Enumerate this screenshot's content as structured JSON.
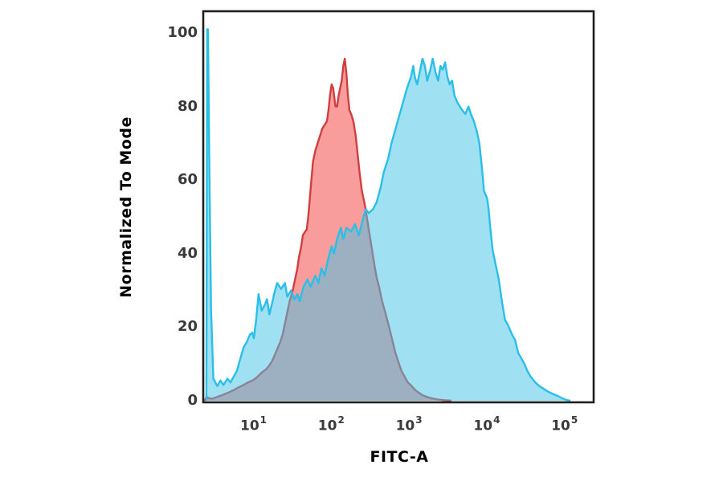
{
  "figure": {
    "background_color": "#ffffff",
    "frame_color": "#1f1f1f",
    "overlap_visual_color": "#95a9bc"
  },
  "axes": {
    "y": {
      "title": "Normalized To Mode",
      "tick_values": [
        0,
        20,
        40,
        60,
        80,
        100
      ],
      "range": [
        0,
        105.5
      ],
      "grid": false
    },
    "x": {
      "title": "FITC-A",
      "scale": "log10",
      "tick_base": "10",
      "tick_exponents": [
        "1",
        "2",
        "3",
        "4",
        "5"
      ],
      "range_log10": [
        0.38,
        5.38
      ],
      "grid": false
    }
  },
  "chart_data": {
    "type": "area",
    "subtype": "flow-cytometry-overlay-histogram",
    "title": "",
    "xlabel": "FITC-A",
    "ylabel": "Normalized To Mode",
    "x_scale": "log10",
    "x_range_log10": [
      0.38,
      5.38
    ],
    "ylim": [
      0,
      105.5
    ],
    "grid": false,
    "legend_position": "none",
    "series": [
      {
        "name": "red-histogram",
        "stroke": "#cf3f3f",
        "fill": "#f89c9c",
        "fill_opacity": 1,
        "stroke_width": 2.4,
        "points_log10x_y": [
          [
            0.38,
            0
          ],
          [
            0.4,
            1
          ],
          [
            0.43,
            0.7
          ],
          [
            0.47,
            0.5
          ],
          [
            0.51,
            0.8
          ],
          [
            0.56,
            1.2
          ],
          [
            0.61,
            1.6
          ],
          [
            0.66,
            2
          ],
          [
            0.71,
            2.5
          ],
          [
            0.76,
            3
          ],
          [
            0.81,
            3.6
          ],
          [
            0.87,
            4.2
          ],
          [
            0.92,
            4.8
          ],
          [
            0.96,
            5.2
          ],
          [
            1.0,
            5.6
          ],
          [
            1.04,
            6.2
          ],
          [
            1.08,
            7
          ],
          [
            1.12,
            7.8
          ],
          [
            1.17,
            8.6
          ],
          [
            1.21,
            9.6
          ],
          [
            1.25,
            11
          ],
          [
            1.29,
            13
          ],
          [
            1.32,
            14.5
          ],
          [
            1.35,
            16
          ],
          [
            1.38,
            18
          ],
          [
            1.41,
            21
          ],
          [
            1.44,
            24
          ],
          [
            1.47,
            27
          ],
          [
            1.51,
            30
          ],
          [
            1.54,
            33
          ],
          [
            1.57,
            36
          ],
          [
            1.59,
            39
          ],
          [
            1.62,
            42
          ],
          [
            1.64,
            45
          ],
          [
            1.67,
            46
          ],
          [
            1.69,
            46.5
          ],
          [
            1.71,
            50
          ],
          [
            1.73,
            55
          ],
          [
            1.75,
            60
          ],
          [
            1.77,
            65
          ],
          [
            1.8,
            68
          ],
          [
            1.83,
            70
          ],
          [
            1.86,
            72
          ],
          [
            1.89,
            74
          ],
          [
            1.92,
            75
          ],
          [
            1.95,
            76
          ],
          [
            1.97,
            79
          ],
          [
            1.99,
            83
          ],
          [
            2.01,
            86
          ],
          [
            2.03,
            85
          ],
          [
            2.06,
            80
          ],
          [
            2.08,
            80
          ],
          [
            2.1,
            83
          ],
          [
            2.14,
            87
          ],
          [
            2.16,
            91
          ],
          [
            2.18,
            93
          ],
          [
            2.2,
            89
          ],
          [
            2.22,
            83
          ],
          [
            2.24,
            79
          ],
          [
            2.26,
            78
          ],
          [
            2.29,
            76
          ],
          [
            2.32,
            72
          ],
          [
            2.35,
            66
          ],
          [
            2.37,
            62
          ],
          [
            2.4,
            57
          ],
          [
            2.44,
            53
          ],
          [
            2.47,
            49
          ],
          [
            2.5,
            45
          ],
          [
            2.53,
            41
          ],
          [
            2.56,
            37
          ],
          [
            2.59,
            33.5
          ],
          [
            2.62,
            31
          ],
          [
            2.66,
            27
          ],
          [
            2.7,
            24
          ],
          [
            2.75,
            20
          ],
          [
            2.79,
            16.5
          ],
          [
            2.83,
            13
          ],
          [
            2.87,
            10.5
          ],
          [
            2.91,
            8
          ],
          [
            2.95,
            6.5
          ],
          [
            2.99,
            5
          ],
          [
            3.04,
            4
          ],
          [
            3.08,
            3
          ],
          [
            3.13,
            2.2
          ],
          [
            3.18,
            1.5
          ],
          [
            3.24,
            1
          ],
          [
            3.31,
            0.6
          ],
          [
            3.38,
            0.3
          ],
          [
            3.47,
            0.1
          ],
          [
            3.55,
            0
          ]
        ]
      },
      {
        "name": "cyan-histogram",
        "stroke": "#29bfe6",
        "fill": "#46c3e6",
        "fill_opacity": 0.52,
        "stroke_width": 2.4,
        "points_log10x_y": [
          [
            0.4,
            0
          ],
          [
            0.41,
            101
          ],
          [
            0.42,
            101
          ],
          [
            0.44,
            60
          ],
          [
            0.46,
            25
          ],
          [
            0.49,
            6
          ],
          [
            0.54,
            4
          ],
          [
            0.58,
            5.5
          ],
          [
            0.62,
            4.3
          ],
          [
            0.67,
            6
          ],
          [
            0.71,
            5
          ],
          [
            0.75,
            6.5
          ],
          [
            0.79,
            8
          ],
          [
            0.83,
            11
          ],
          [
            0.88,
            14.6
          ],
          [
            0.92,
            16
          ],
          [
            0.96,
            18
          ],
          [
            0.99,
            18.5
          ],
          [
            1.01,
            17
          ],
          [
            1.04,
            22
          ],
          [
            1.07,
            29
          ],
          [
            1.11,
            24.5
          ],
          [
            1.15,
            26
          ],
          [
            1.18,
            27.6
          ],
          [
            1.21,
            23.5
          ],
          [
            1.24,
            26
          ],
          [
            1.27,
            29
          ],
          [
            1.31,
            32
          ],
          [
            1.36,
            30.4
          ],
          [
            1.41,
            32
          ],
          [
            1.44,
            28.3
          ],
          [
            1.49,
            30
          ],
          [
            1.53,
            27.5
          ],
          [
            1.57,
            29
          ],
          [
            1.6,
            27
          ],
          [
            1.65,
            31
          ],
          [
            1.7,
            33
          ],
          [
            1.74,
            31
          ],
          [
            1.8,
            34
          ],
          [
            1.84,
            32
          ],
          [
            1.88,
            36
          ],
          [
            1.92,
            34
          ],
          [
            1.96,
            38
          ],
          [
            2.01,
            42
          ],
          [
            2.04,
            40
          ],
          [
            2.08,
            44
          ],
          [
            2.13,
            47
          ],
          [
            2.16,
            44
          ],
          [
            2.2,
            47
          ],
          [
            2.26,
            46
          ],
          [
            2.31,
            48
          ],
          [
            2.36,
            45
          ],
          [
            2.42,
            50
          ],
          [
            2.45,
            52
          ],
          [
            2.49,
            51
          ],
          [
            2.54,
            52
          ],
          [
            2.59,
            54
          ],
          [
            2.64,
            58
          ],
          [
            2.68,
            62
          ],
          [
            2.74,
            66
          ],
          [
            2.78,
            70
          ],
          [
            2.82,
            73
          ],
          [
            2.86,
            76
          ],
          [
            2.9,
            79
          ],
          [
            2.94,
            82
          ],
          [
            2.98,
            85
          ],
          [
            3.03,
            88
          ],
          [
            3.06,
            91
          ],
          [
            3.08,
            88
          ],
          [
            3.11,
            86
          ],
          [
            3.15,
            90
          ],
          [
            3.18,
            93
          ],
          [
            3.21,
            91
          ],
          [
            3.24,
            87
          ],
          [
            3.28,
            90
          ],
          [
            3.31,
            93
          ],
          [
            3.35,
            89
          ],
          [
            3.38,
            87
          ],
          [
            3.41,
            91
          ],
          [
            3.44,
            90
          ],
          [
            3.47,
            92
          ],
          [
            3.5,
            88
          ],
          [
            3.53,
            86
          ],
          [
            3.56,
            87
          ],
          [
            3.59,
            83
          ],
          [
            3.63,
            81
          ],
          [
            3.69,
            79
          ],
          [
            3.73,
            78
          ],
          [
            3.77,
            80
          ],
          [
            3.8,
            78
          ],
          [
            3.84,
            76
          ],
          [
            3.88,
            73
          ],
          [
            3.91,
            70
          ],
          [
            3.94,
            64
          ],
          [
            3.97,
            57
          ],
          [
            4.01,
            55
          ],
          [
            4.03,
            52
          ],
          [
            4.05,
            47
          ],
          [
            4.08,
            41
          ],
          [
            4.12,
            37
          ],
          [
            4.16,
            33
          ],
          [
            4.2,
            27
          ],
          [
            4.24,
            22
          ],
          [
            4.28,
            20.5
          ],
          [
            4.33,
            18
          ],
          [
            4.37,
            16.5
          ],
          [
            4.41,
            13
          ],
          [
            4.45,
            11.5
          ],
          [
            4.49,
            10
          ],
          [
            4.53,
            8
          ],
          [
            4.57,
            6.5
          ],
          [
            4.63,
            5
          ],
          [
            4.68,
            4
          ],
          [
            4.74,
            3.2
          ],
          [
            4.8,
            2.4
          ],
          [
            4.86,
            1.8
          ],
          [
            4.93,
            1.2
          ],
          [
            4.98,
            0.6
          ],
          [
            5.03,
            0.2
          ],
          [
            5.08,
            0
          ]
        ]
      }
    ]
  }
}
